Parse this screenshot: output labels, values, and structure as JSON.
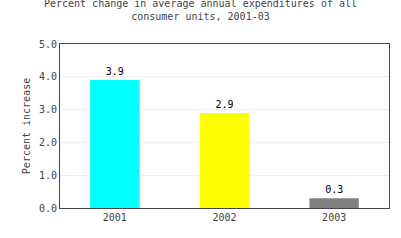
{
  "chart_data": {
    "type": "bar",
    "title": "Percent change in average annual expenditures of all\nconsumer units, 2001-03",
    "ylabel": "Percent increase",
    "categories": [
      "2001",
      "2002",
      "2003"
    ],
    "values": [
      3.9,
      2.9,
      0.3
    ],
    "colors": [
      "#00FFFF",
      "#FFFF00",
      "#808080"
    ],
    "ylim": [
      0.0,
      5.0
    ],
    "yticks": [
      {
        "value": 0.0,
        "label": "0.0"
      },
      {
        "value": 1.0,
        "label": "1.0"
      },
      {
        "value": 2.0,
        "label": "2.0"
      },
      {
        "value": 3.0,
        "label": "3.0"
      },
      {
        "value": 4.0,
        "label": "4.0"
      },
      {
        "value": 5.0,
        "label": "5.0"
      }
    ],
    "grid": true,
    "data_labels": true
  }
}
